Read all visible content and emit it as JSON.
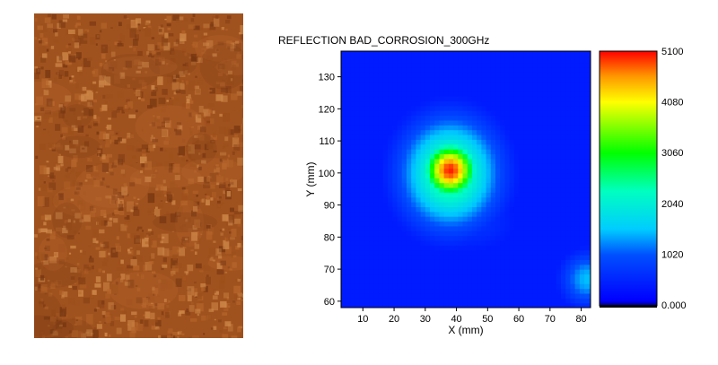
{
  "chart_data": {
    "type": "heatmap",
    "title": "REFLECTION BAD_CORROSION_300GHz",
    "xlabel": "X (mm)",
    "ylabel": "Y (mm)",
    "xlim": [
      3,
      83
    ],
    "ylim": [
      58,
      138
    ],
    "x_ticks": [
      "10",
      "20",
      "30",
      "40",
      "50",
      "60",
      "70",
      "80"
    ],
    "y_ticks": [
      "60",
      "70",
      "80",
      "90",
      "100",
      "110",
      "120",
      "130"
    ],
    "colorbar": {
      "range": [
        0,
        5100
      ],
      "tick_labels": [
        "0.000",
        "1020",
        "2040",
        "3060",
        "4080",
        "5100"
      ],
      "colors": [
        "#000000",
        "#0000ff",
        "#00ffff",
        "#00ff00",
        "#ffff00",
        "#ff0000"
      ]
    },
    "background_level": 350,
    "features": [
      {
        "name": "corrosion-peak",
        "x": 38,
        "y": 101,
        "peak": 5000,
        "spread_x": 6,
        "spread_y": 6
      },
      {
        "name": "corrosion-halo",
        "x": 38,
        "y": 100,
        "peak": 2700,
        "spread_x": 11,
        "spread_y": 12
      },
      {
        "name": "right-edge-spot",
        "x": 82,
        "y": 67,
        "peak": 1500,
        "spread_x": 6,
        "spread_y": 6
      },
      {
        "name": "lower-patch",
        "x": 45,
        "y": 85,
        "peak": 650,
        "spread_x": 12,
        "spread_y": 8
      }
    ]
  },
  "photo": {
    "description_colors": [
      "#9c4f1b",
      "#b5652a",
      "#7a3812",
      "#d08a4a"
    ]
  }
}
